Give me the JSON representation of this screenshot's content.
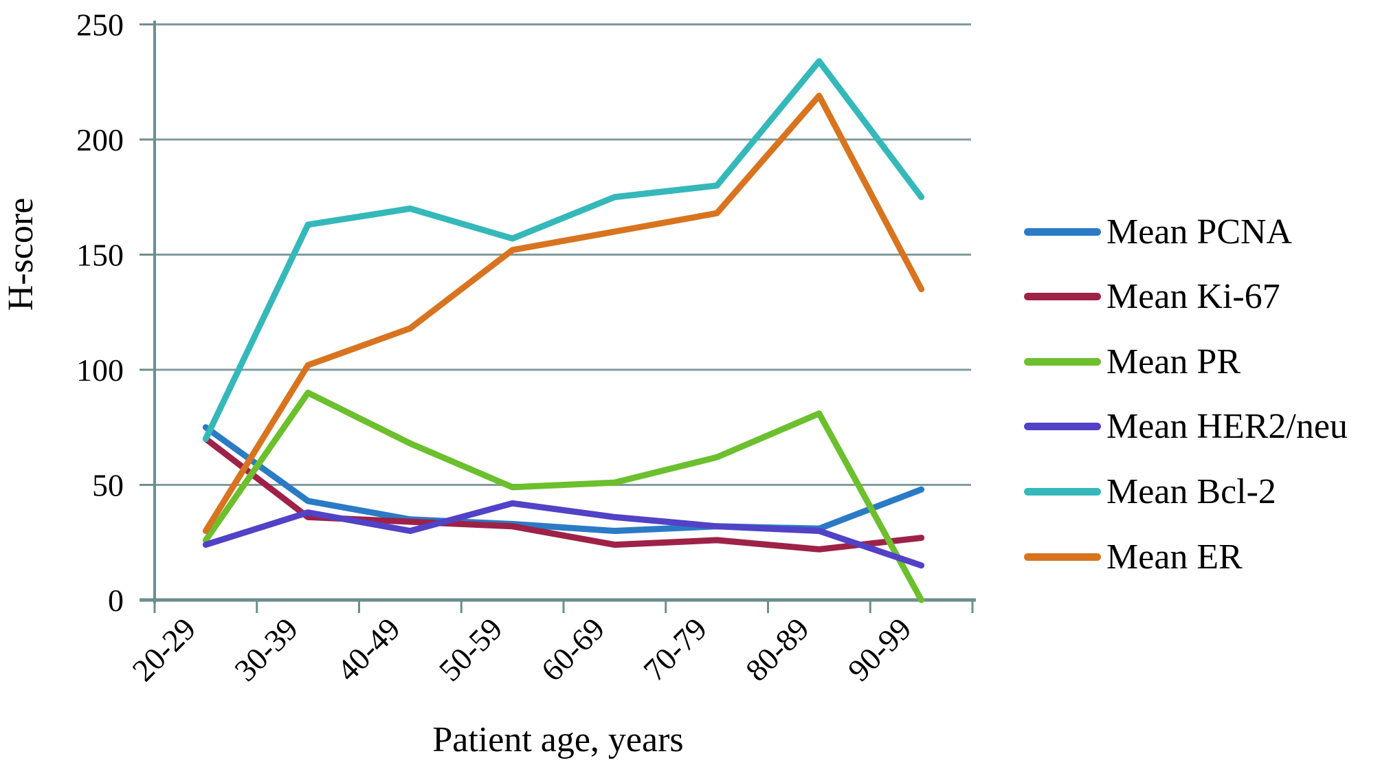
{
  "figure": {
    "background": "#ffffff",
    "grid_color": "#7f9b9b",
    "axis_color": "#6d8e8e",
    "text_color": "#000000"
  },
  "chart_data": {
    "type": "line",
    "title": "",
    "xlabel": "Patient age, years",
    "ylabel": "H-score",
    "categories": [
      "20-29",
      "30-39",
      "40-49",
      "50-59",
      "60-69",
      "70-79",
      "80-89",
      "90-99"
    ],
    "series": [
      {
        "name": "Mean PCNA",
        "color": "#2b7ac6",
        "values": [
          75,
          43,
          35,
          33,
          30,
          32,
          31,
          48
        ]
      },
      {
        "name": "Mean Ki-67",
        "color": "#9e2247",
        "values": [
          70,
          36,
          34,
          32,
          24,
          26,
          22,
          27
        ]
      },
      {
        "name": "Mean PR",
        "color": "#6cbf2d",
        "values": [
          26,
          90,
          68,
          49,
          51,
          62,
          81,
          0
        ]
      },
      {
        "name": "Mean HER2/neu",
        "color": "#5142c6",
        "values": [
          24,
          38,
          30,
          42,
          36,
          32,
          30,
          15
        ]
      },
      {
        "name": "Mean Bcl-2",
        "color": "#35b8ba",
        "values": [
          70,
          163,
          170,
          157,
          175,
          180,
          234,
          175
        ]
      },
      {
        "name": "Mean ER",
        "color": "#d8741f",
        "values": [
          30,
          102,
          118,
          152,
          160,
          168,
          219,
          135
        ]
      }
    ],
    "ylim": [
      0,
      250
    ],
    "yticks": [
      0,
      50,
      100,
      150,
      200,
      250
    ],
    "grid": true,
    "legend_position": "right"
  }
}
